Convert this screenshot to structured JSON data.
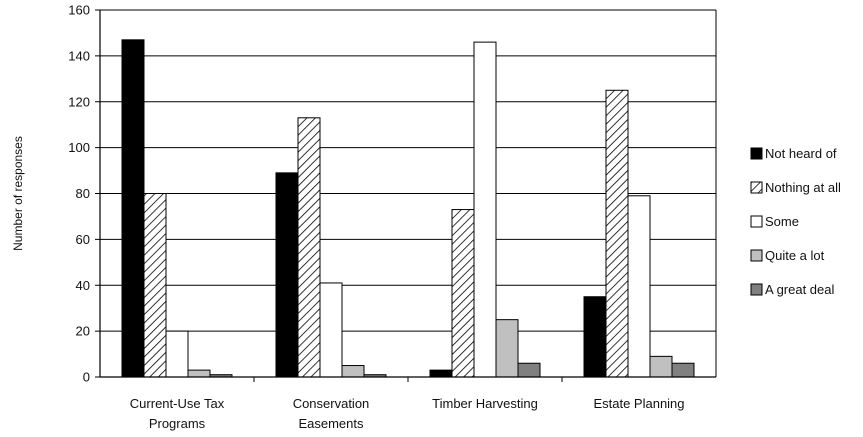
{
  "chart_data": {
    "type": "bar",
    "title": "",
    "xlabel": "",
    "ylabel": "Number of responses",
    "ylim": [
      0,
      160
    ],
    "yticks": [
      0,
      20,
      40,
      60,
      80,
      100,
      120,
      140,
      160
    ],
    "grid": "horizontal",
    "legend_position": "right",
    "categories": [
      [
        "Current-Use Tax",
        "Programs"
      ],
      [
        "Conservation",
        "Easements"
      ],
      [
        "Timber Harvesting"
      ],
      [
        "Estate Planning"
      ]
    ],
    "series": [
      {
        "name": "Not heard of",
        "values": [
          147,
          89,
          3,
          35
        ],
        "fill": "#000000",
        "pattern": "solid"
      },
      {
        "name": "Nothing at all",
        "values": [
          80,
          113,
          73,
          125
        ],
        "fill": "#ffffff",
        "pattern": "hatch"
      },
      {
        "name": "Some",
        "values": [
          20,
          41,
          146,
          79
        ],
        "fill": "#ffffff",
        "pattern": "solid"
      },
      {
        "name": "Quite a lot",
        "values": [
          3,
          5,
          25,
          9
        ],
        "fill": "#c0c0c0",
        "pattern": "solid"
      },
      {
        "name": "A great deal",
        "values": [
          1,
          1,
          6,
          6
        ],
        "fill": "#808080",
        "pattern": "solid"
      }
    ]
  }
}
